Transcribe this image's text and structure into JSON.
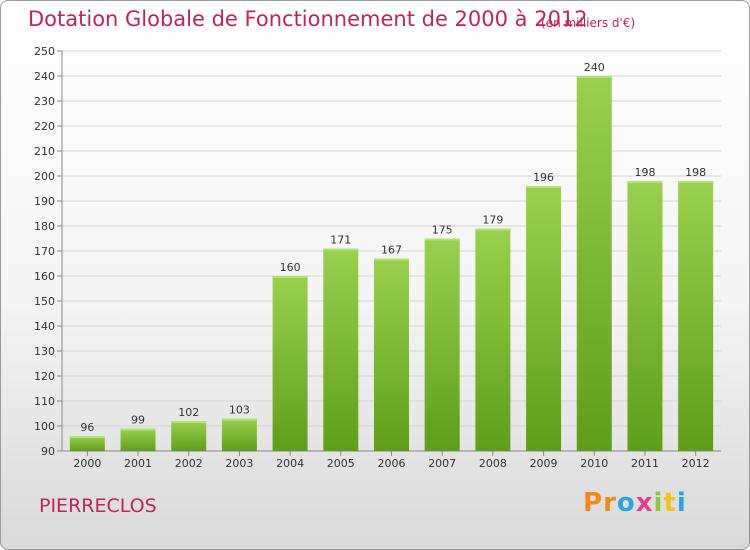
{
  "title": "Dotation Globale de Fonctionnement de 2000 à 2012",
  "subtitle": "(en milliers d'€)",
  "city": "PIERRECLOS",
  "logo": {
    "letters": [
      "P",
      "r",
      "o",
      "x",
      "i",
      "t",
      "i"
    ],
    "colors": [
      "#f08a1e",
      "#f08a1e",
      "#2aa4dc",
      "#e63c8e",
      "#8cc63f",
      "#f4c11e",
      "#2aa4dc"
    ]
  },
  "chart_data": {
    "type": "bar",
    "categories": [
      "2000",
      "2001",
      "2002",
      "2003",
      "2004",
      "2005",
      "2006",
      "2007",
      "2008",
      "2009",
      "2010",
      "2011",
      "2012"
    ],
    "values": [
      96,
      99,
      102,
      103,
      160,
      171,
      167,
      175,
      179,
      196,
      240,
      198,
      198
    ],
    "title": "Dotation Globale de Fonctionnement de 2000 à 2012",
    "ylim": [
      90,
      250
    ],
    "yticks": [
      90,
      100,
      110,
      120,
      130,
      140,
      150,
      160,
      170,
      180,
      190,
      200,
      210,
      220,
      230,
      240,
      250
    ],
    "grid": true,
    "bar_color": "#7cbf2c"
  }
}
